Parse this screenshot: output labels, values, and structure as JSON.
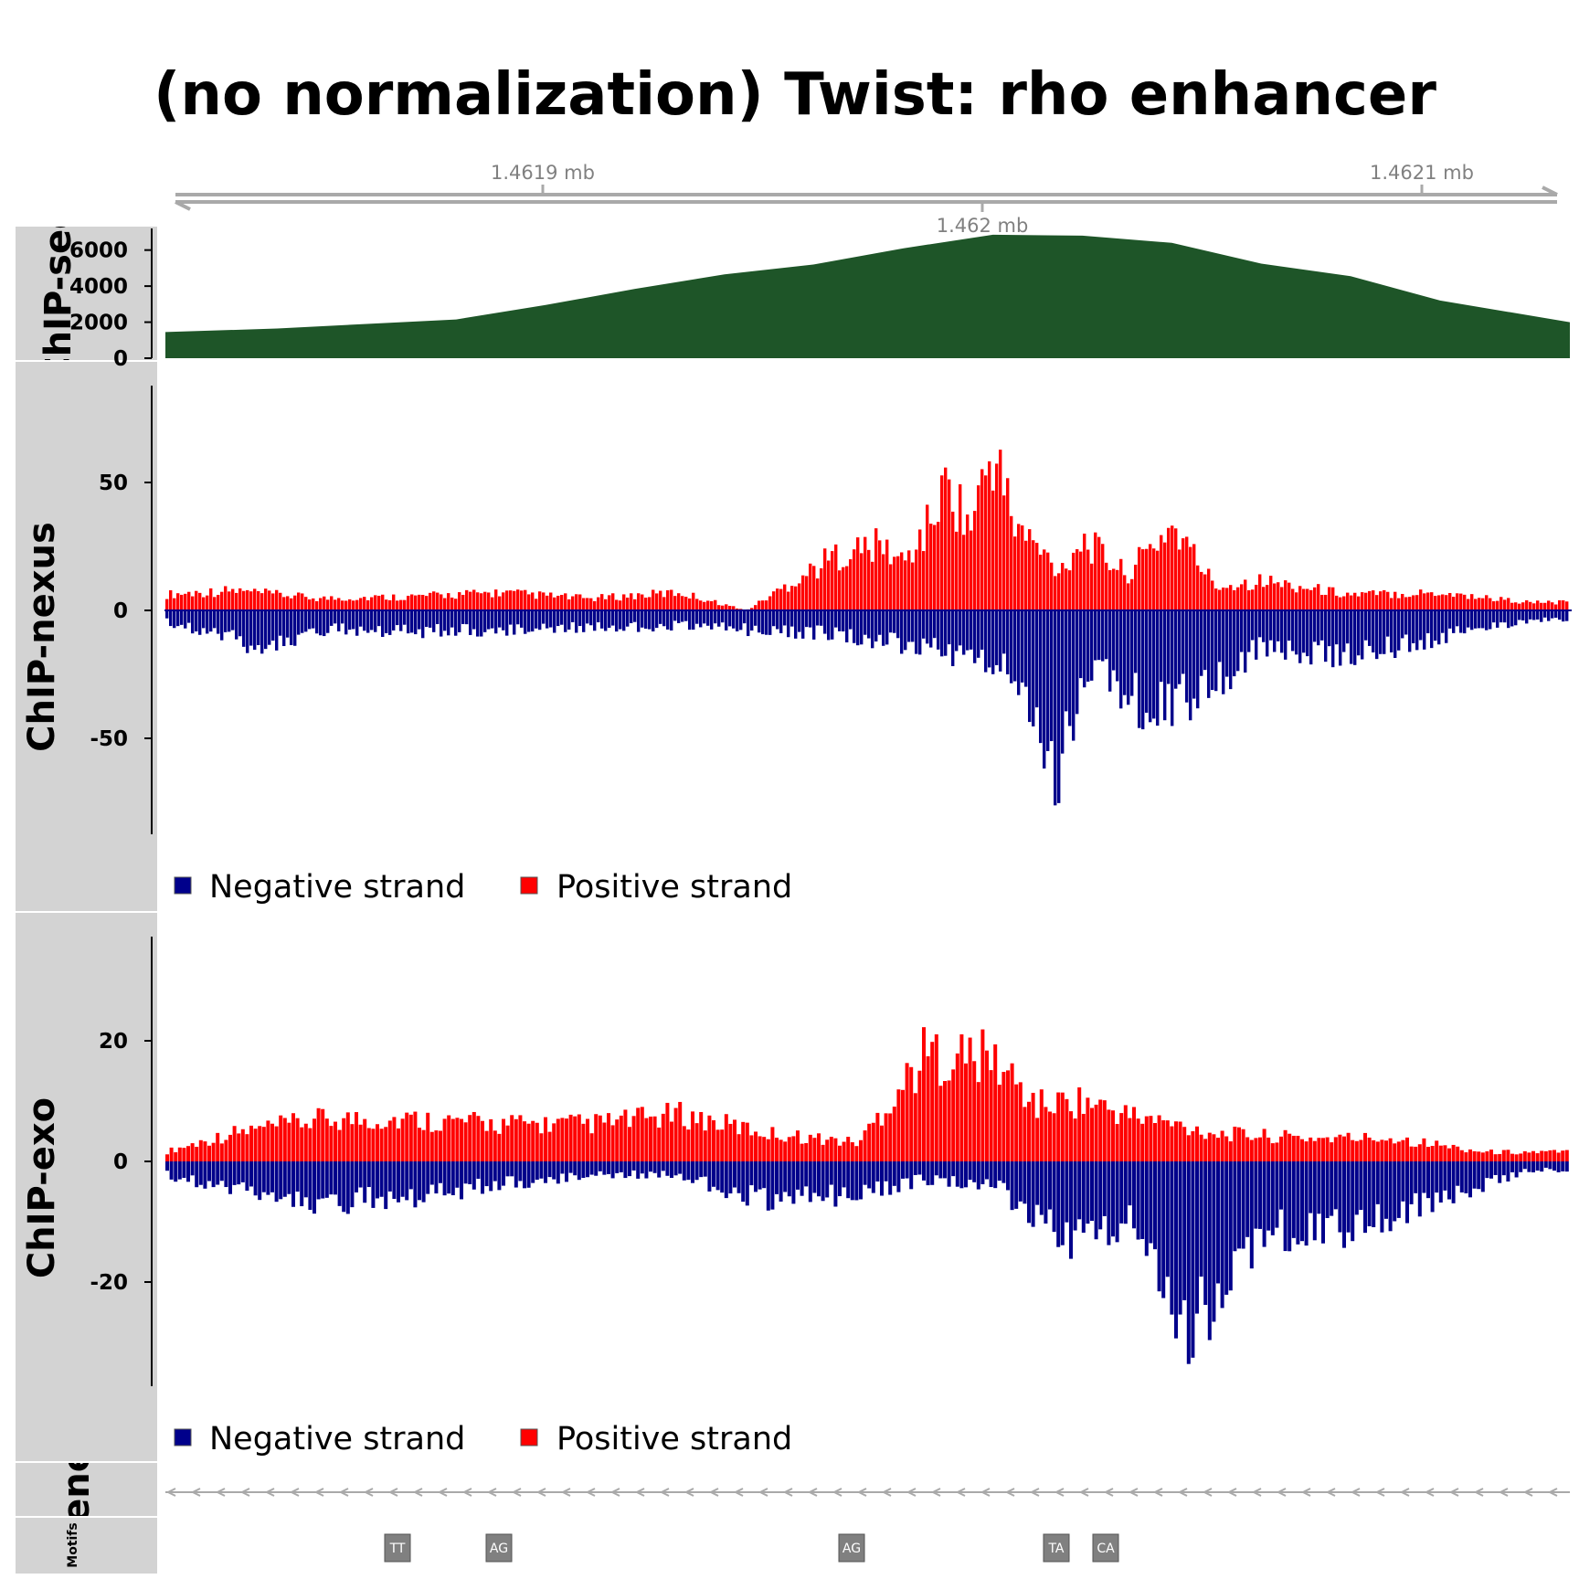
{
  "title": "(no normalization) Twist: rho enhancer",
  "colors": {
    "chipseq": "#1e5528",
    "positive": "#ff0000",
    "negative": "#00008b",
    "panel": "#d3d3d3",
    "axis": "#a9a9a9",
    "motif": "#808080"
  },
  "genome_axis": {
    "ticks_top": [
      "1.4619 mb",
      "1.4621 mb"
    ],
    "ticks_bottom": [
      "1.462 mb"
    ],
    "tick_values": [
      1.4619,
      1.462,
      1.4621
    ],
    "range": [
      1.461815,
      1.462129
    ]
  },
  "tracks": {
    "chipseq": {
      "label": "ChIP-seq",
      "ticks": [
        "6000",
        "4000",
        "2000",
        "0"
      ]
    },
    "nexus": {
      "label": "ChIP-nexus",
      "ticks": [
        "50",
        "0",
        "-50"
      ]
    },
    "exo": {
      "label": "ChIP-exo",
      "ticks": [
        "20",
        "0",
        "-20"
      ]
    },
    "genes": {
      "label": "Genes"
    },
    "motifs": {
      "label": "Motifs"
    }
  },
  "legend": {
    "negative": "Negative strand",
    "positive": "Positive strand"
  },
  "motifs": [
    "TT",
    "AG",
    "AG",
    "TA",
    "CA"
  ],
  "chart_data": [
    {
      "type": "area",
      "track": "ChIP-seq",
      "x": [
        1.461815,
        1.46184,
        1.46186,
        1.46188,
        1.4619,
        1.46192,
        1.46194,
        1.46196,
        1.46198,
        1.462,
        1.46202,
        1.46204,
        1.46206,
        1.46208,
        1.4621,
        1.462129
      ],
      "y": [
        1450,
        1650,
        1900,
        2150,
        2950,
        3850,
        4650,
        5200,
        6100,
        6850,
        6800,
        6400,
        5250,
        4550,
        3200,
        2000
      ],
      "ylim": [
        0,
        7200
      ]
    },
    {
      "type": "bar",
      "track": "ChIP-nexus",
      "series": [
        {
          "name": "Positive strand",
          "x": [
            1.461815,
            1.46183,
            1.46185,
            1.46187,
            1.46189,
            1.46191,
            1.46193,
            1.461945,
            1.461965,
            1.461975,
            1.46198,
            1.461985,
            1.46199,
            1.461995,
            1.462,
            1.462005,
            1.462015,
            1.46202,
            1.46203,
            1.46204,
            1.46205,
            1.46206,
            1.46208,
            1.4621,
            1.46212
          ],
          "values": [
            8,
            10,
            6,
            7,
            9,
            6,
            9,
            0,
            28,
            33,
            24,
            40,
            64,
            42,
            81,
            43,
            20,
            36,
            18,
            43,
            12,
            15,
            8,
            9,
            4
          ]
        },
        {
          "name": "Negative strand",
          "x": [
            1.461815,
            1.46183,
            1.461835,
            1.46185,
            1.46187,
            1.46189,
            1.46191,
            1.46193,
            1.461945,
            1.461965,
            1.461985,
            1.462,
            1.46201,
            1.462015,
            1.46202,
            1.462025,
            1.46203,
            1.46204,
            1.46205,
            1.46206,
            1.46208,
            1.4621,
            1.46212
          ],
          "values": [
            -6,
            -14,
            -20,
            -10,
            -11,
            -10,
            -9,
            -8,
            -10,
            -12,
            -20,
            -25,
            -55,
            -86,
            -35,
            -28,
            -45,
            -50,
            -38,
            -18,
            -24,
            -14,
            -5
          ]
        }
      ],
      "ylim": [
        -88,
        88
      ]
    },
    {
      "type": "bar",
      "track": "ChIP-exo",
      "series": [
        {
          "name": "Positive strand",
          "x": [
            1.461815,
            1.46183,
            1.46185,
            1.46187,
            1.46189,
            1.46191,
            1.46193,
            1.46195,
            1.46197,
            1.461985,
            1.462,
            1.46201,
            1.46202,
            1.46203,
            1.46205,
            1.46207,
            1.46209,
            1.46211
          ],
          "values": [
            2,
            6,
            9,
            9,
            8,
            8,
            10,
            6,
            4,
            23,
            22,
            12,
            13,
            10,
            6,
            5,
            5,
            2
          ]
        },
        {
          "name": "Negative strand",
          "x": [
            1.461815,
            1.46183,
            1.46185,
            1.46187,
            1.46189,
            1.46191,
            1.46193,
            1.46195,
            1.46197,
            1.461985,
            1.462,
            1.462015,
            1.46203,
            1.462045,
            1.46206,
            1.46208,
            1.4621,
            1.46212
          ],
          "values": [
            -3,
            -6,
            -9,
            -8,
            -5,
            -3,
            -3,
            -9,
            -7,
            -4,
            -5,
            -17,
            -13,
            -37,
            -15,
            -15,
            -8,
            -2
          ]
        }
      ],
      "ylim": [
        -37,
        37
      ]
    }
  ]
}
